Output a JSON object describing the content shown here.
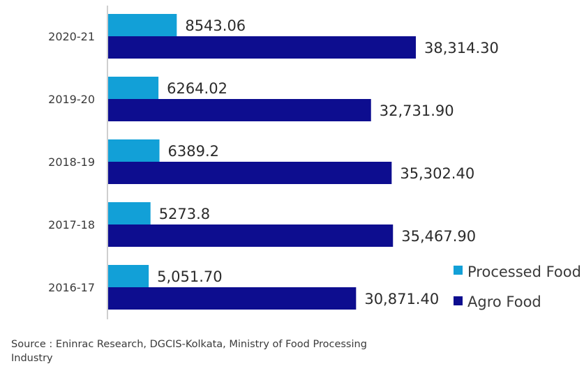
{
  "chart_data": {
    "type": "bar",
    "orientation": "horizontal",
    "categories": [
      "2020-21",
      "2019-20",
      "2018-19",
      "2017-18",
      "2016-17"
    ],
    "series": [
      {
        "name": "Processed Food",
        "color": "#12a0d7",
        "values": [
          8543.06,
          6264.02,
          6389.2,
          5273.8,
          5051.7
        ],
        "labels": [
          "8543.06",
          "6264.02",
          "6389.2",
          "5273.8",
          "5,051.70"
        ]
      },
      {
        "name": "Agro Food",
        "color": "#0d0d8f",
        "values": [
          38314.3,
          32731.9,
          35302.4,
          35467.9,
          30871.4
        ],
        "labels": [
          "38,314.30",
          "32,731.90",
          "35,302.40",
          "35,467.90",
          "30,871.40"
        ]
      }
    ],
    "title": "",
    "xlabel": "",
    "ylabel": "",
    "xlim": [
      0,
      42000
    ],
    "grid": false,
    "legend_position": "bottom-right"
  },
  "source": "Source : Eninrac Research, DGCIS-Kolkata, Ministry of Food Processing Industry"
}
